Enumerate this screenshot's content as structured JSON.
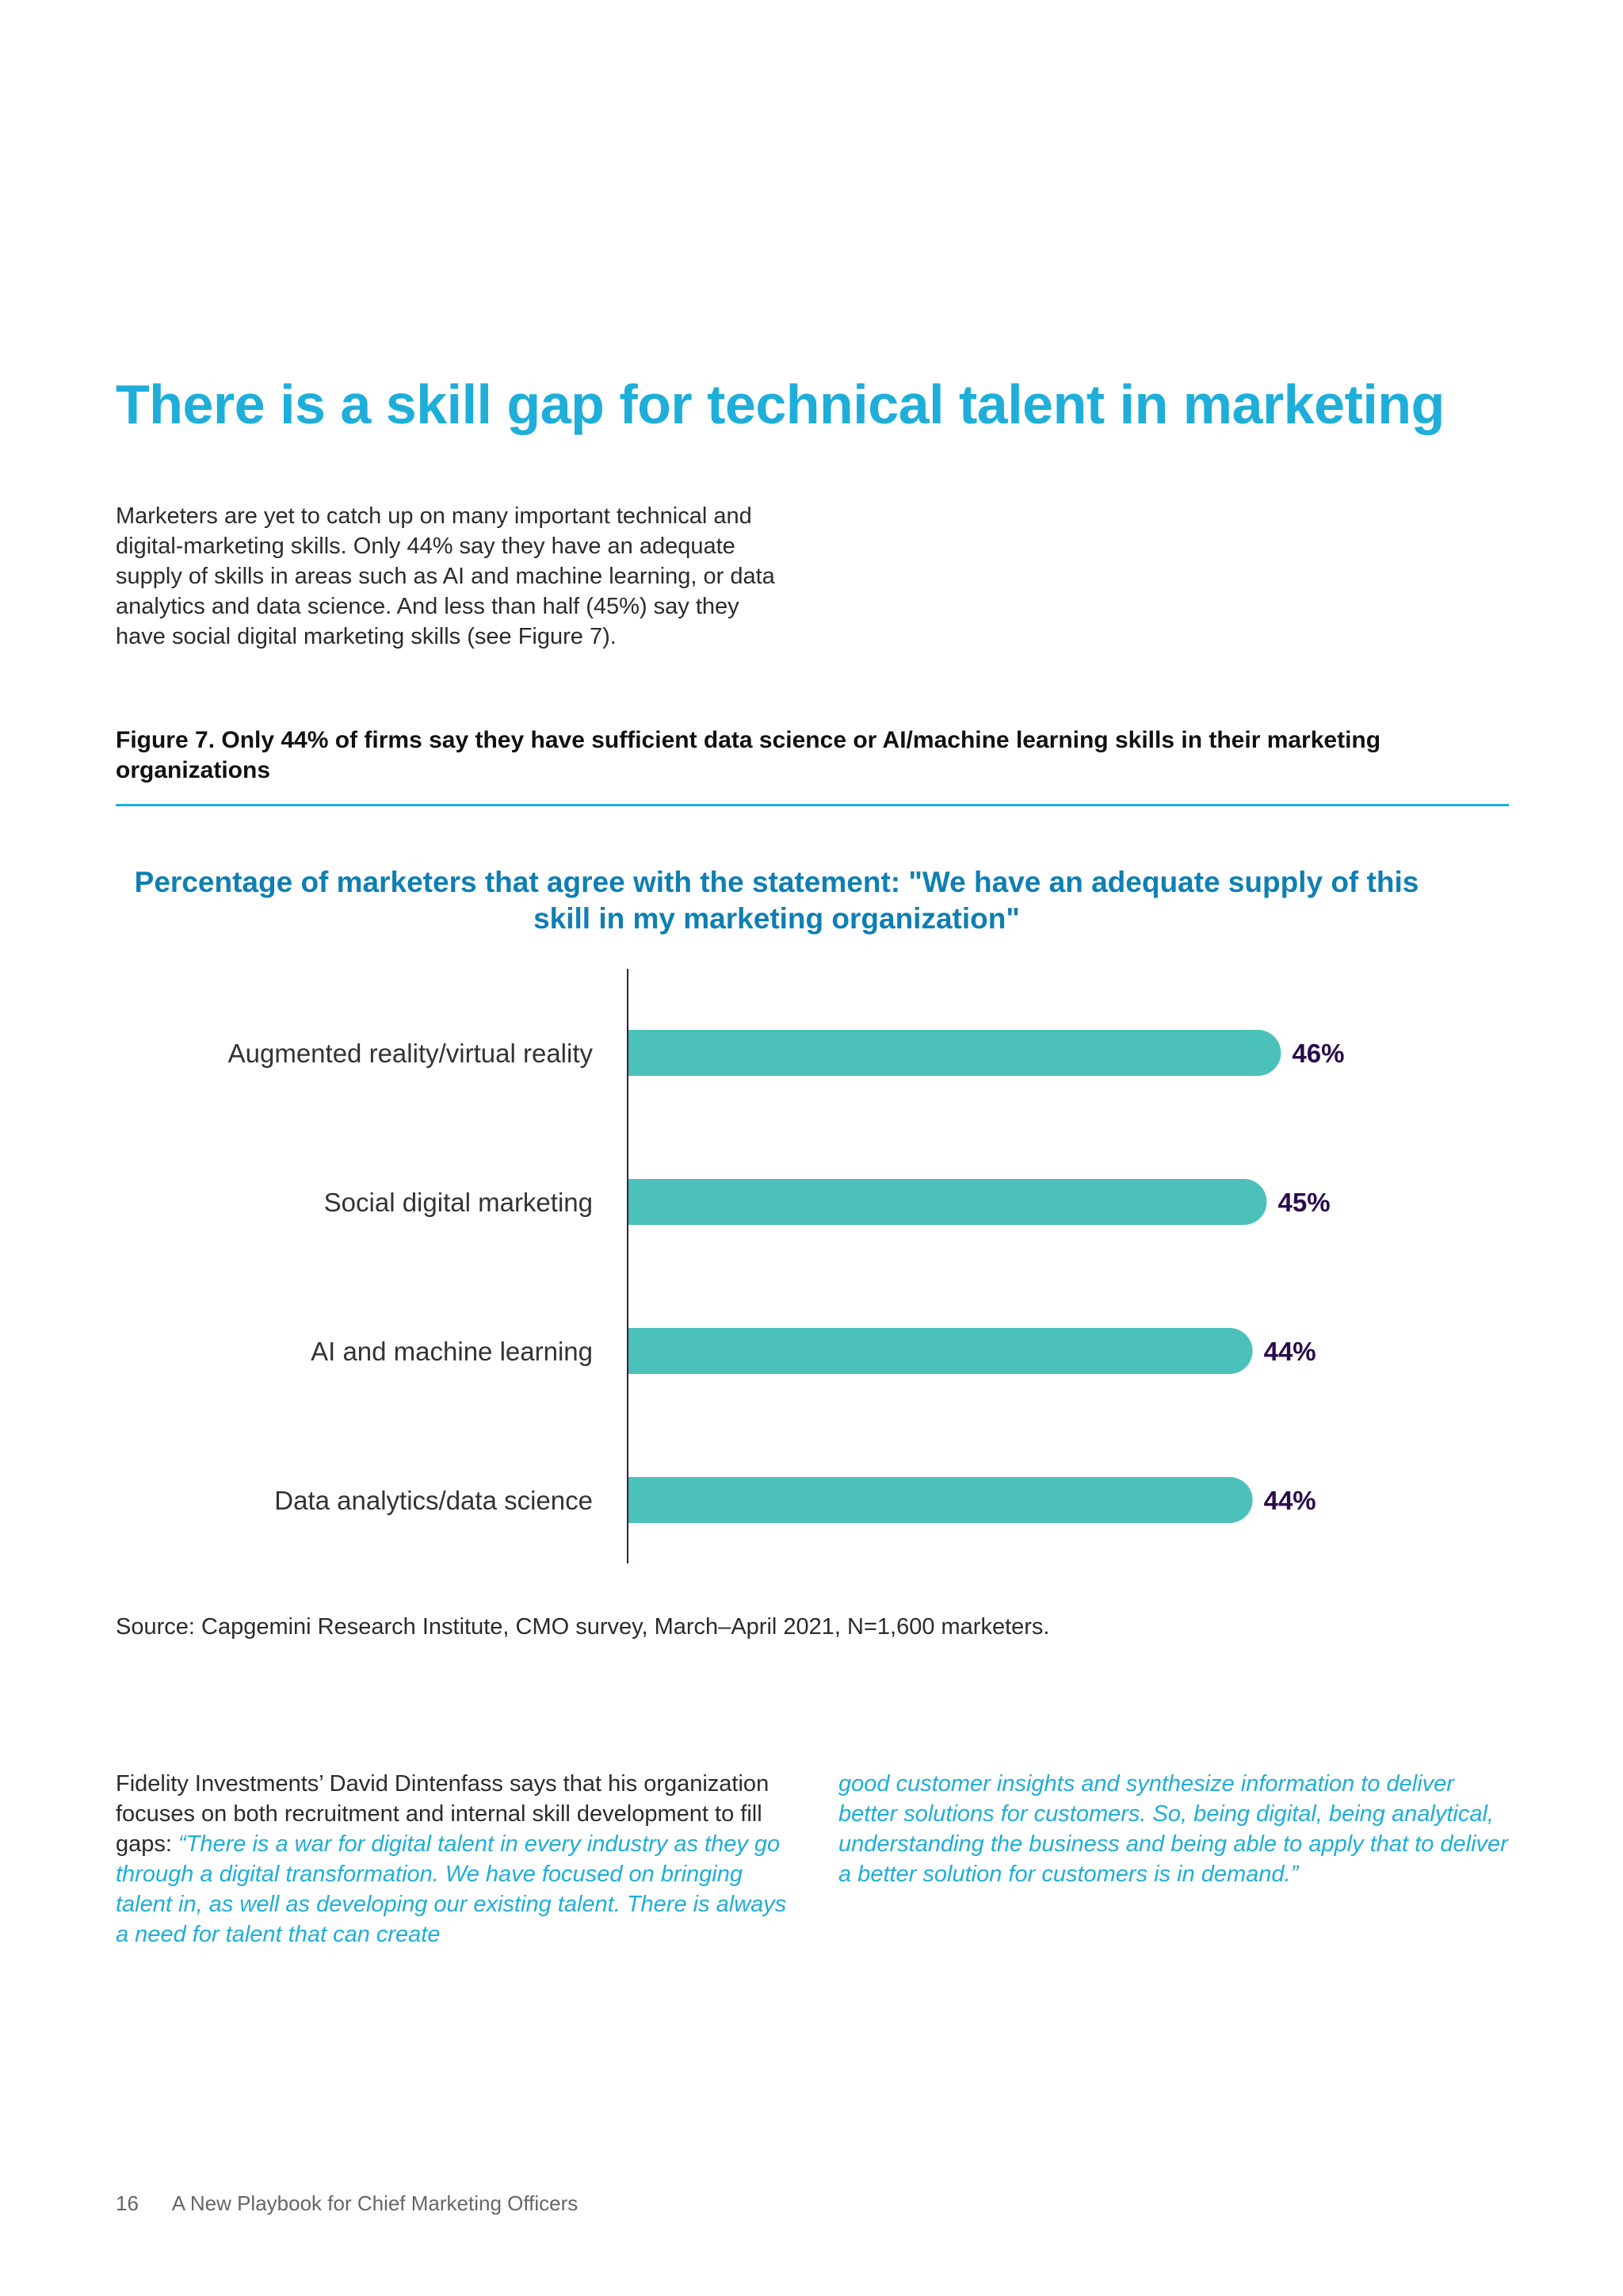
{
  "heading": "There is a skill gap for technical talent in marketing",
  "intro": "Marketers are yet to catch up on many important technical and digital-marketing skills. Only 44% say they have an adequate supply of skills in areas such as AI and machine learning, or data analytics and data science. And less than half (45%) say they have social digital marketing skills (see Figure 7).",
  "figure_caption": "Figure 7. Only 44% of firms say they have sufficient data science or AI/machine learning skills in their marketing organizations",
  "chart_data": {
    "type": "bar",
    "orientation": "horizontal",
    "title": "Percentage of marketers that agree with the statement: \"We have an adequate supply of this skill in my marketing organization\"",
    "categories": [
      "Augmented reality/virtual reality",
      "Social digital marketing",
      "AI and machine learning",
      "Data analytics/data science"
    ],
    "values": [
      46,
      45,
      44,
      44
    ],
    "value_labels": [
      "46%",
      "45%",
      "44%",
      "44%"
    ],
    "unit": "%",
    "bar_color": "#4cc1b9",
    "axis_color": "#3a1a4a",
    "label_color": "#2a0a4a",
    "grid": false
  },
  "source": "Source: Capgemini Research Institute, CMO survey, March–April 2021, N=1,600 marketers.",
  "body": {
    "left_plain": "Fidelity Investments’ David Dintenfass says that his organization focuses on both recruitment and internal skill development to fill gaps: ",
    "left_quote": "“There is a war for digital talent in every industry as they go through a digital transformation. We have focused on bringing talent in, as well as developing our existing talent. There is always a need for talent that can create",
    "right_quote": "good customer insights and synthesize information to deliver better solutions for customers. So, being digital, being analytical, understanding the business and being able to apply that to deliver a better solution for customers is  in demand.”"
  },
  "footer": {
    "page_number": "16",
    "publication": "A New Playbook for  Chief Marketing Officers"
  },
  "colors": {
    "heading": "#1eaed9",
    "chart_title": "#0f7fb3",
    "quote": "#1eaed9"
  }
}
